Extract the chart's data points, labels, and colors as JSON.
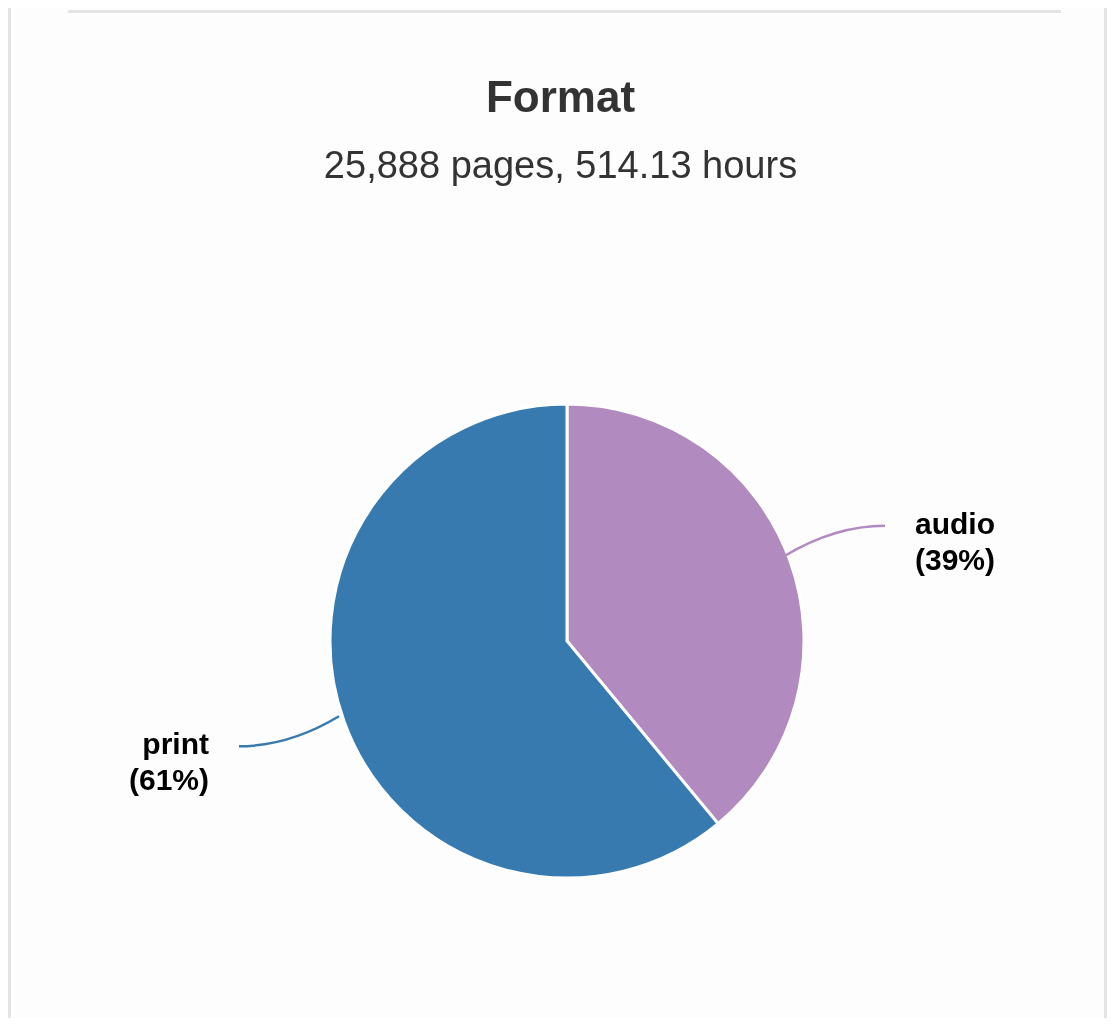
{
  "chart_data": {
    "type": "pie",
    "title": "Format",
    "subtitle": "25,888 pages, 514.13 hours",
    "categories": [
      "audio",
      "print"
    ],
    "values": [
      39,
      61
    ],
    "colors": [
      "#b18abf",
      "#377ab0"
    ],
    "value_labels": [
      "(39%)",
      "(61%)"
    ],
    "legend": false
  }
}
